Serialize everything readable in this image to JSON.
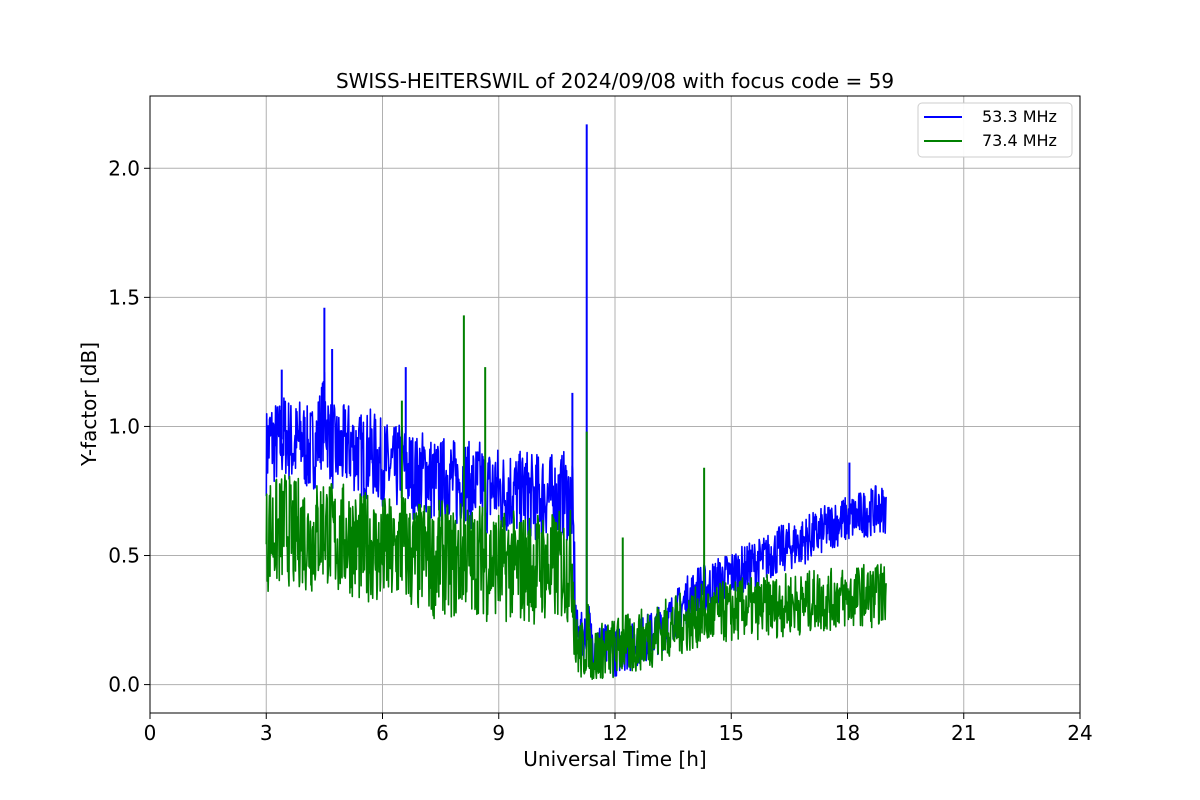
{
  "chart_data": {
    "type": "line",
    "title": "SWISS-HEITERSWIL of 2024/09/08 with focus code = 59",
    "xlabel": "Universal Time [h]",
    "ylabel": "Y-factor [dB]",
    "xlim": [
      0,
      24
    ],
    "ylim": [
      -0.11,
      2.28
    ],
    "xticks": [
      "0",
      "3",
      "6",
      "9",
      "12",
      "15",
      "18",
      "21",
      "24"
    ],
    "yticks": [
      "0.0",
      "0.5",
      "1.0",
      "1.5",
      "2.0"
    ],
    "grid": true,
    "legend_position": "top-right",
    "series": [
      {
        "name": "53.3 MHz",
        "color": "#0000ff",
        "x": [
          3.0,
          3.1,
          3.3,
          3.5,
          3.7,
          3.9,
          4.1,
          4.3,
          4.5,
          4.7,
          4.9,
          5.1,
          5.3,
          5.5,
          5.7,
          5.9,
          6.1,
          6.3,
          6.5,
          6.7,
          6.9,
          7.1,
          7.3,
          7.5,
          7.7,
          7.9,
          8.1,
          8.3,
          8.5,
          8.7,
          8.9,
          9.1,
          9.3,
          9.5,
          9.7,
          9.9,
          10.1,
          10.3,
          10.5,
          10.7,
          10.9,
          11.0,
          11.2,
          11.3,
          11.4,
          11.6,
          11.8,
          12.0,
          12.2,
          12.4,
          12.6,
          12.8,
          13.0,
          13.2,
          13.4,
          13.6,
          13.8,
          14.0,
          14.2,
          14.4,
          14.6,
          14.8,
          15.0,
          15.2,
          15.4,
          15.6,
          15.8,
          16.0,
          16.2,
          16.4,
          16.6,
          16.8,
          17.0,
          17.2,
          17.4,
          17.6,
          17.8,
          18.0,
          18.2,
          18.4,
          18.6,
          18.8,
          19.0
        ],
        "y": [
          0.9,
          0.95,
          0.93,
          0.97,
          0.92,
          0.95,
          0.9,
          0.94,
          1.05,
          0.92,
          0.9,
          0.93,
          0.91,
          0.88,
          0.9,
          0.87,
          0.85,
          0.83,
          0.86,
          0.82,
          0.8,
          0.83,
          0.79,
          0.78,
          0.82,
          0.77,
          0.8,
          0.76,
          0.78,
          0.75,
          0.77,
          0.74,
          0.76,
          0.73,
          0.75,
          0.72,
          0.74,
          0.73,
          0.72,
          0.74,
          0.7,
          0.2,
          0.18,
          0.25,
          0.16,
          0.15,
          0.14,
          0.12,
          0.15,
          0.14,
          0.17,
          0.18,
          0.2,
          0.22,
          0.25,
          0.28,
          0.32,
          0.35,
          0.38,
          0.37,
          0.4,
          0.41,
          0.43,
          0.44,
          0.45,
          0.47,
          0.48,
          0.5,
          0.52,
          0.53,
          0.54,
          0.55,
          0.57,
          0.58,
          0.6,
          0.62,
          0.63,
          0.64,
          0.65,
          0.66,
          0.67,
          0.68,
          0.68
        ],
        "spikes": [
          {
            "x": 4.5,
            "y": 1.46
          },
          {
            "x": 4.7,
            "y": 1.3
          },
          {
            "x": 3.4,
            "y": 1.22
          },
          {
            "x": 6.6,
            "y": 1.23
          },
          {
            "x": 11.27,
            "y": 2.17
          },
          {
            "x": 10.9,
            "y": 1.13
          },
          {
            "x": 18.05,
            "y": 0.86
          }
        ],
        "min": 0.0
      },
      {
        "name": "73.4 MHz",
        "color": "#008000",
        "x": [
          3.0,
          3.1,
          3.3,
          3.5,
          3.7,
          3.9,
          4.1,
          4.3,
          4.5,
          4.7,
          4.9,
          5.1,
          5.3,
          5.5,
          5.7,
          5.9,
          6.1,
          6.3,
          6.5,
          6.7,
          6.9,
          7.1,
          7.3,
          7.5,
          7.7,
          7.9,
          8.1,
          8.3,
          8.5,
          8.7,
          8.9,
          9.1,
          9.3,
          9.5,
          9.7,
          9.9,
          10.1,
          10.3,
          10.5,
          10.7,
          10.9,
          11.0,
          11.2,
          11.3,
          11.4,
          11.6,
          11.8,
          12.0,
          12.2,
          12.4,
          12.6,
          12.8,
          13.0,
          13.2,
          13.4,
          13.6,
          13.8,
          14.0,
          14.2,
          14.4,
          14.6,
          14.8,
          15.0,
          15.2,
          15.4,
          15.6,
          15.8,
          16.0,
          16.2,
          16.4,
          16.6,
          16.8,
          17.0,
          17.2,
          17.4,
          17.6,
          17.8,
          18.0,
          18.2,
          18.4,
          18.6,
          18.8,
          19.0
        ],
        "y": [
          0.55,
          0.6,
          0.58,
          0.62,
          0.57,
          0.6,
          0.56,
          0.58,
          0.62,
          0.57,
          0.55,
          0.58,
          0.54,
          0.52,
          0.55,
          0.5,
          0.52,
          0.49,
          0.55,
          0.5,
          0.48,
          0.52,
          0.47,
          0.5,
          0.48,
          0.46,
          0.52,
          0.47,
          0.5,
          0.46,
          0.48,
          0.45,
          0.47,
          0.44,
          0.46,
          0.45,
          0.47,
          0.44,
          0.46,
          0.45,
          0.47,
          0.15,
          0.12,
          0.2,
          0.1,
          0.12,
          0.13,
          0.14,
          0.16,
          0.15,
          0.17,
          0.18,
          0.19,
          0.21,
          0.22,
          0.23,
          0.24,
          0.25,
          0.27,
          0.26,
          0.27,
          0.28,
          0.28,
          0.29,
          0.3,
          0.29,
          0.3,
          0.31,
          0.3,
          0.31,
          0.32,
          0.31,
          0.32,
          0.33,
          0.32,
          0.33,
          0.34,
          0.33,
          0.34,
          0.35,
          0.34,
          0.35,
          0.35
        ],
        "spikes": [
          {
            "x": 8.1,
            "y": 1.43
          },
          {
            "x": 8.65,
            "y": 1.23
          },
          {
            "x": 6.5,
            "y": 1.1
          },
          {
            "x": 11.27,
            "y": 0.98
          },
          {
            "x": 14.3,
            "y": 0.84
          },
          {
            "x": 12.2,
            "y": 0.57
          }
        ],
        "min": 0.02
      }
    ]
  }
}
